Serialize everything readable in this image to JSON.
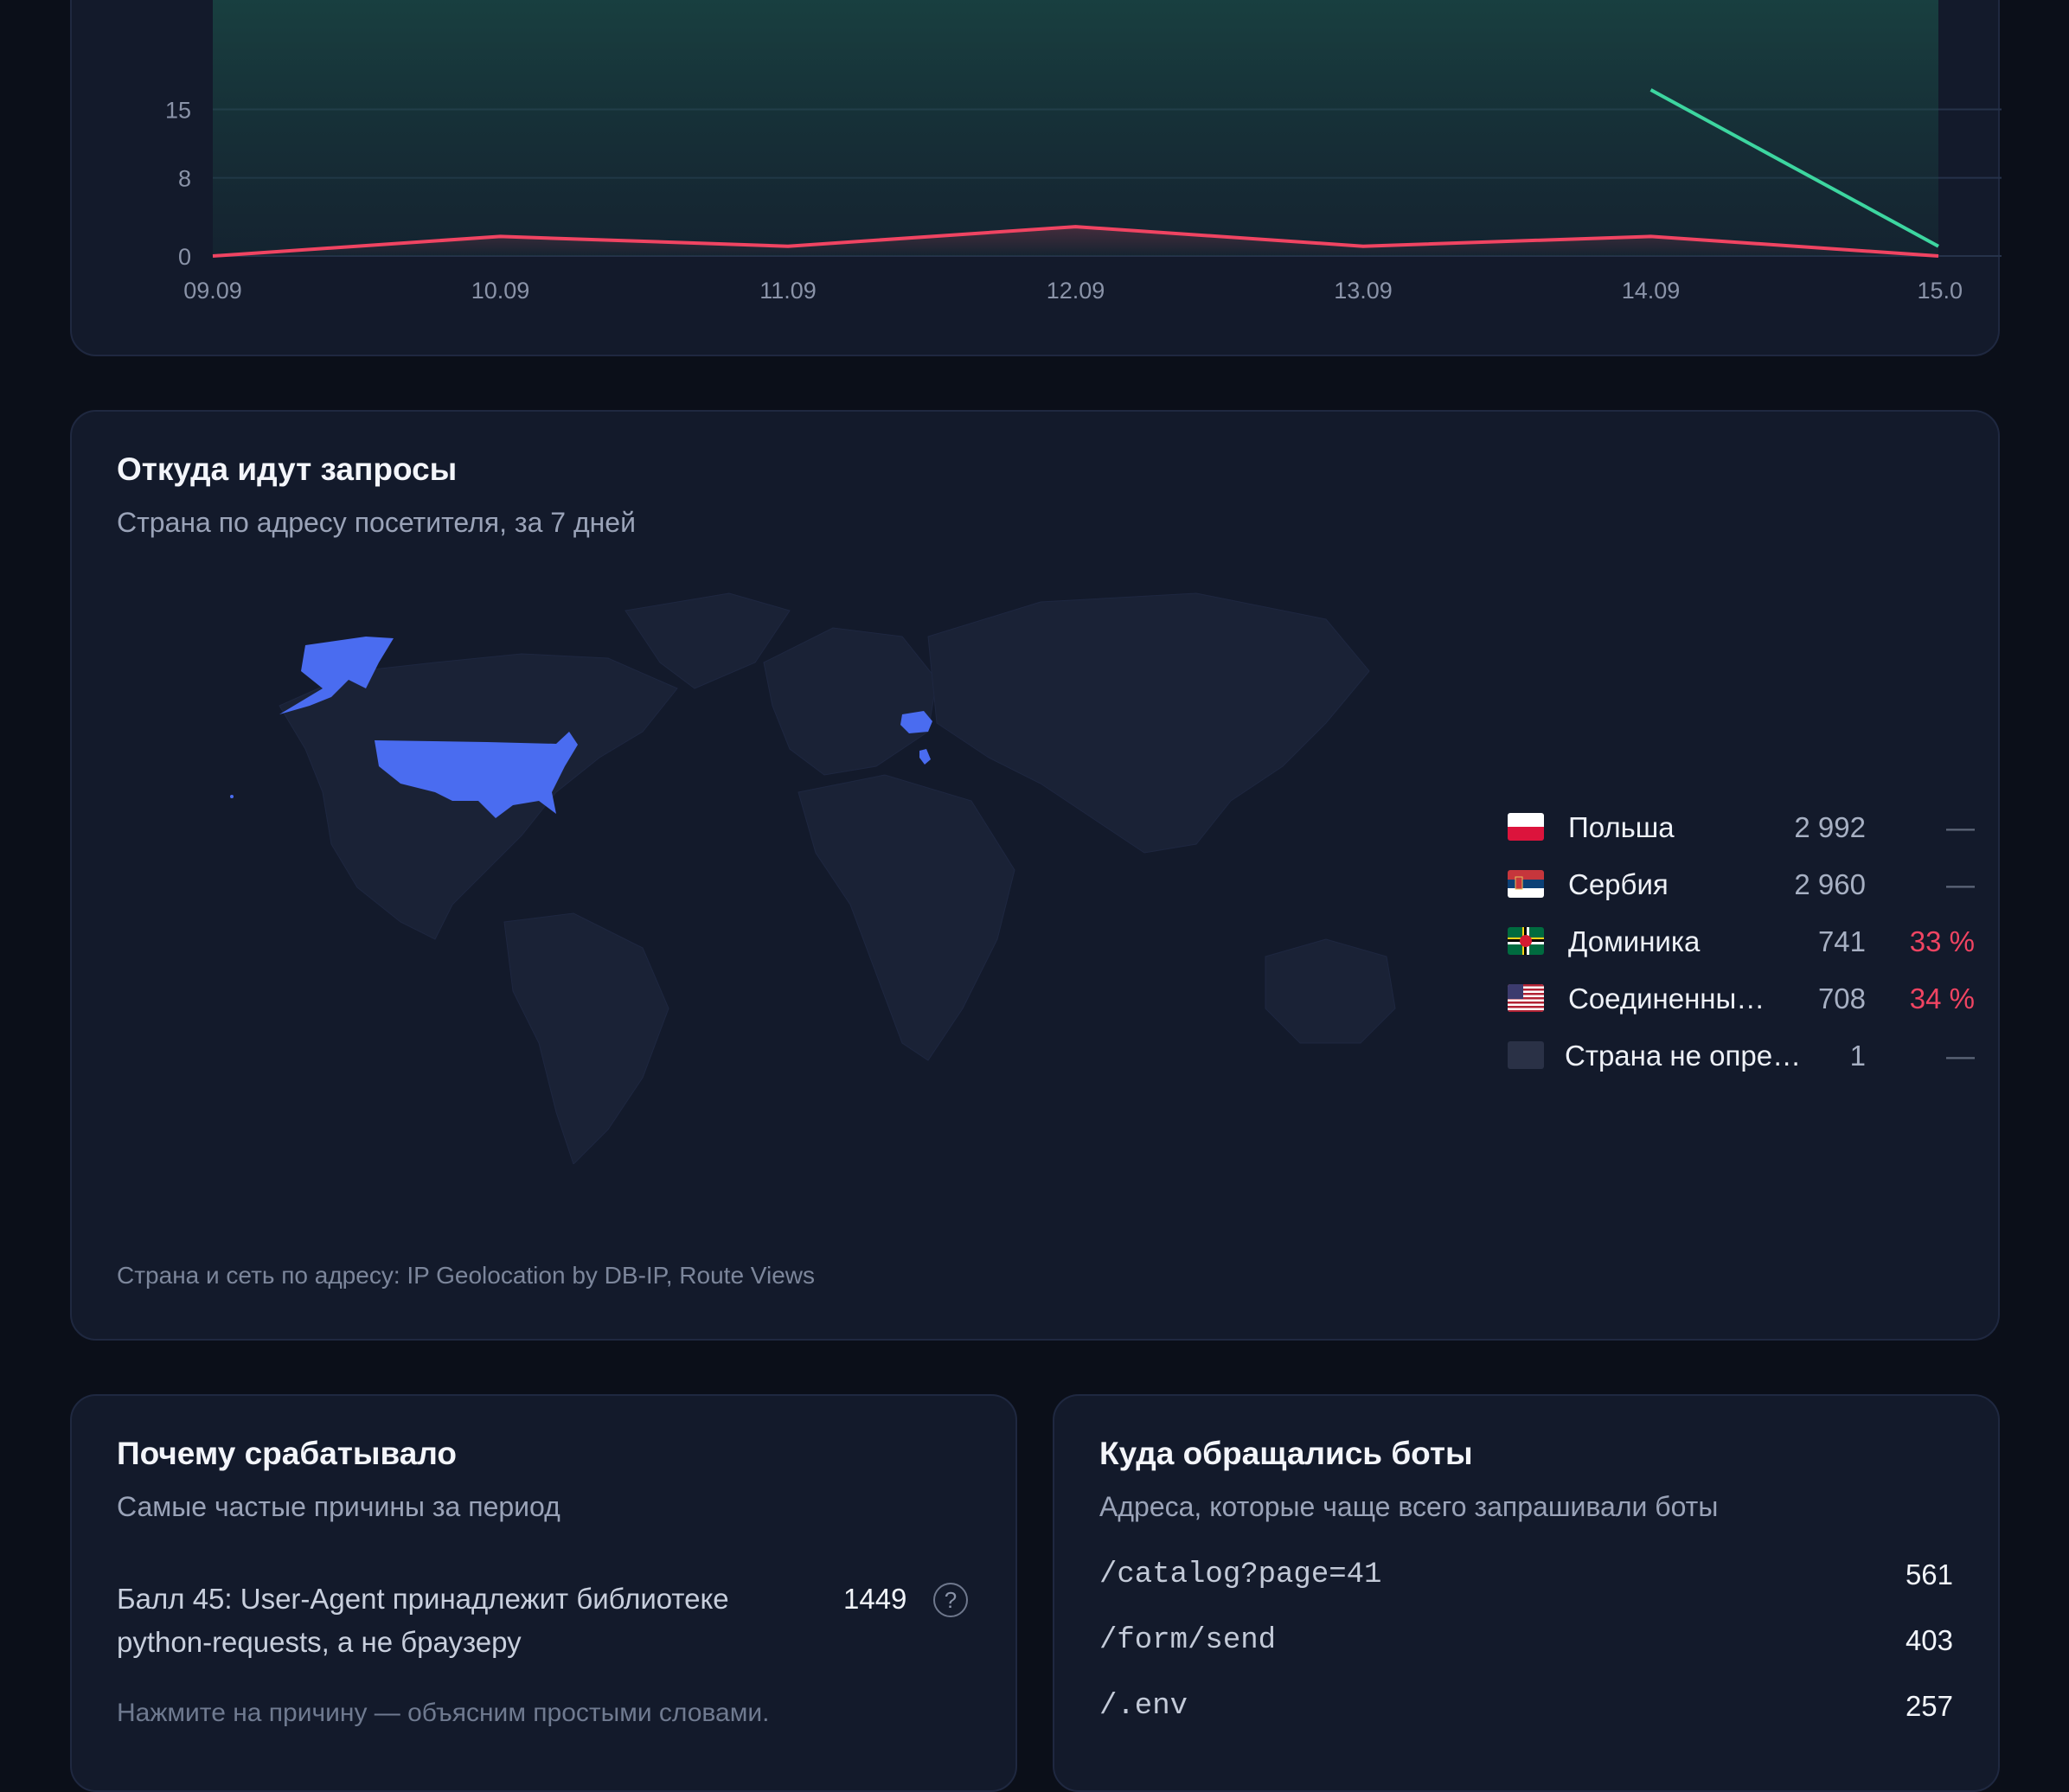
{
  "trend_chart": {
    "chart_data": {
      "type": "line",
      "categories": [
        "09.09",
        "10.09",
        "11.09",
        "12.09",
        "13.09",
        "14.09",
        "15.0"
      ],
      "y_ticks": [
        "0",
        "8",
        "15"
      ],
      "ylim": [
        0,
        16
      ],
      "grid": true,
      "series": [
        {
          "color": "#3dd6a0",
          "values": [
            null,
            null,
            null,
            null,
            null,
            17,
            1
          ]
        },
        {
          "color": "#f04462",
          "values": [
            0,
            2,
            1,
            3,
            1,
            2,
            0
          ]
        }
      ]
    }
  },
  "geo": {
    "title": "Откуда идут запросы",
    "subtitle": "Страна по адресу посетителя, за 7 дней",
    "highlight_color": "#4a6cf0",
    "countries": [
      {
        "name": "Польша",
        "count": "2 992",
        "share": "—",
        "flag": "poland"
      },
      {
        "name": "Сербия",
        "count": "2 960",
        "share": "—",
        "flag": "serbia"
      },
      {
        "name": "Доминика",
        "count": "741",
        "share": "33 %",
        "flag": "dominica"
      },
      {
        "name": "Соединенны…",
        "count": "708",
        "share": "34 %",
        "flag": "usa"
      },
      {
        "name": "Страна не опре…",
        "count": "1",
        "share": "—",
        "flag": "unknown"
      }
    ],
    "source_note": "Страна и сеть по адресу: IP Geolocation by DB-IP, Route Views"
  },
  "reasons": {
    "title": "Почему срабатывало",
    "subtitle": "Самые частые причины за период",
    "items": [
      {
        "text": "Балл 45: User-Agent принадлежит библиотеке python-requests, а не браузеру",
        "count": "1449",
        "icon": "help-circle-icon"
      }
    ],
    "hint": "Нажмите на причину — объясним простыми словами."
  },
  "paths": {
    "title": "Куда обращались боты",
    "subtitle": "Адреса, которые чаще всего запрашивали боты",
    "items": [
      {
        "url": "/catalog?page=41",
        "count": "561"
      },
      {
        "url": "/form/send",
        "count": "403"
      },
      {
        "url": "/.env",
        "count": "257"
      }
    ]
  }
}
